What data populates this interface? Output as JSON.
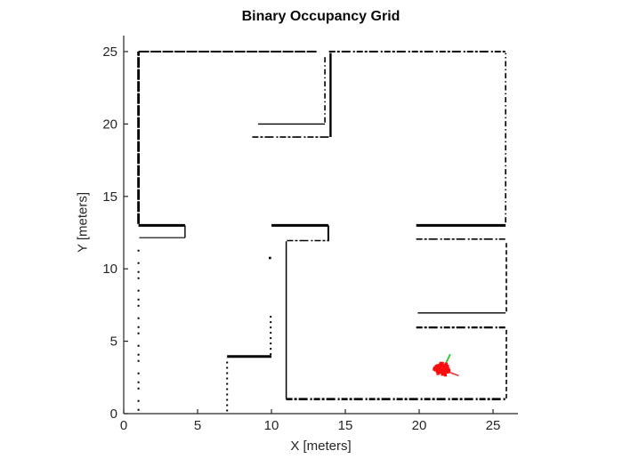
{
  "chart_data": {
    "type": "scatter",
    "title": "Binary Occupancy Grid",
    "xlabel": "X [meters]",
    "ylabel": "Y [meters]",
    "xlim": [
      0,
      26.7
    ],
    "ylim": [
      0,
      26.1
    ],
    "xticks": [
      0,
      5,
      10,
      15,
      20,
      25
    ],
    "yticks": [
      0,
      5,
      10,
      15,
      20,
      25
    ],
    "grid": false,
    "legend": "none",
    "colors": {
      "wall": "#000000",
      "axis": "#262626",
      "particle": "#f80e0e",
      "tail": "#f23535",
      "heading": "#35cb35",
      "background": "#ffffff"
    },
    "walls": [
      {
        "name": "top-wall-left",
        "x1": 1,
        "y1": 25,
        "x2": 13.05,
        "y2": 25,
        "style": "dense",
        "w": 2
      },
      {
        "name": "top-wall-right",
        "x1": 13.9,
        "y1": 25,
        "x2": 25.9,
        "y2": 25,
        "style": "dashmix",
        "w": 2
      },
      {
        "name": "left-wall-upper",
        "x1": 1,
        "y1": 13.1,
        "x2": 1,
        "y2": 25,
        "style": "dense",
        "w": 2.8
      },
      {
        "name": "left-wall-lower",
        "x1": 1,
        "y1": 0.2,
        "x2": 1,
        "y2": 11.6,
        "style": "sparse",
        "w": 2
      },
      {
        "name": "right-wall-upper",
        "x1": 25.85,
        "y1": 13.2,
        "x2": 25.85,
        "y2": 24.9,
        "style": "dashdot",
        "w": 1.6
      },
      {
        "name": "right-wall-mid",
        "x1": 25.9,
        "y1": 7.05,
        "x2": 25.9,
        "y2": 11.95,
        "style": "dashed",
        "w": 1.6
      },
      {
        "name": "right-wall-lower",
        "x1": 25.9,
        "y1": 1.05,
        "x2": 25.9,
        "y2": 5.85,
        "style": "dashed",
        "w": 1.6
      },
      {
        "name": "bottom-wall",
        "x1": 11,
        "y1": 1,
        "x2": 25.9,
        "y2": 1,
        "style": "dashmix",
        "w": 2.6
      },
      {
        "name": "room-upper-vert-dashdot",
        "x1": 13.62,
        "y1": 20.1,
        "x2": 13.62,
        "y2": 24.8,
        "style": "dashdot",
        "w": 1.6
      },
      {
        "name": "room-upper-vert-solid",
        "x1": 14,
        "y1": 19.1,
        "x2": 14,
        "y2": 24.9,
        "style": "solid",
        "w": 2.4
      },
      {
        "name": "room-upper-horiz-solid",
        "x1": 9.1,
        "y1": 20,
        "x2": 13.62,
        "y2": 20,
        "style": "solid",
        "w": 1.4
      },
      {
        "name": "room-upper-horiz-dashed",
        "x1": 8.7,
        "y1": 19.1,
        "x2": 14,
        "y2": 19.1,
        "style": "dashmix",
        "w": 1.6
      },
      {
        "name": "ledge-left-top",
        "x1": 1,
        "y1": 13,
        "x2": 4.15,
        "y2": 13,
        "style": "solid",
        "w": 3
      },
      {
        "name": "ledge-left-side",
        "x1": 4.15,
        "y1": 12.15,
        "x2": 4.15,
        "y2": 13,
        "style": "solid",
        "w": 1.4
      },
      {
        "name": "ledge-left-bottom",
        "x1": 1.05,
        "y1": 12.15,
        "x2": 4.15,
        "y2": 12.15,
        "style": "solid",
        "w": 1.2
      },
      {
        "name": "ledge-mid-top",
        "x1": 10,
        "y1": 13,
        "x2": 13.85,
        "y2": 13,
        "style": "solid",
        "w": 3
      },
      {
        "name": "ledge-mid-side",
        "x1": 13.85,
        "y1": 11.9,
        "x2": 13.85,
        "y2": 13,
        "style": "solid",
        "w": 2
      },
      {
        "name": "ledge-mid-bottom",
        "x1": 11.05,
        "y1": 11.95,
        "x2": 13.8,
        "y2": 11.95,
        "style": "dashmix",
        "w": 1.5
      },
      {
        "name": "center-wall-vert",
        "x1": 11,
        "y1": 1,
        "x2": 11,
        "y2": 11.9,
        "style": "solid",
        "w": 1.5
      },
      {
        "name": "ledge-right-top",
        "x1": 19.8,
        "y1": 13,
        "x2": 25.85,
        "y2": 13,
        "style": "solid",
        "w": 3
      },
      {
        "name": "ledge-right-bottom",
        "x1": 19.8,
        "y1": 12.05,
        "x2": 25.9,
        "y2": 12.05,
        "style": "dashmix",
        "w": 1.6
      },
      {
        "name": "shelf-right-top",
        "x1": 19.9,
        "y1": 6.95,
        "x2": 25.85,
        "y2": 6.95,
        "style": "solid",
        "w": 1.4
      },
      {
        "name": "shelf-right-bottom",
        "x1": 19.8,
        "y1": 5.95,
        "x2": 25.9,
        "y2": 5.95,
        "style": "dashmix",
        "w": 2.2
      },
      {
        "name": "block-lower-top",
        "x1": 7,
        "y1": 3.95,
        "x2": 10,
        "y2": 3.95,
        "style": "solid",
        "w": 3
      },
      {
        "name": "block-lower-left",
        "x1": 7,
        "y1": 0.15,
        "x2": 7,
        "y2": 3.85,
        "style": "dotted",
        "w": 2
      },
      {
        "name": "block-lower-right",
        "x1": 9.95,
        "y1": 4.05,
        "x2": 9.95,
        "y2": 6.85,
        "style": "dotted",
        "w": 2
      }
    ],
    "stray_points": [
      [
        9.9,
        10.75
      ]
    ],
    "robot": {
      "particles_center": [
        21.62,
        3.02
      ],
      "particle_offsets": [
        [
          -0.6,
          0.05
        ],
        [
          -0.55,
          0.15
        ],
        [
          -0.5,
          0.0
        ],
        [
          -0.45,
          0.25
        ],
        [
          -0.4,
          -0.1
        ],
        [
          -0.4,
          0.1
        ],
        [
          -0.35,
          0.3
        ],
        [
          -0.3,
          0.0
        ],
        [
          -0.3,
          -0.2
        ],
        [
          -0.25,
          0.2
        ],
        [
          -0.25,
          -0.05
        ],
        [
          -0.2,
          0.35
        ],
        [
          -0.2,
          0.05
        ],
        [
          -0.15,
          -0.15
        ],
        [
          -0.15,
          0.45
        ],
        [
          -0.1,
          0.25
        ],
        [
          -0.1,
          0.0
        ],
        [
          -0.05,
          -0.3
        ],
        [
          -0.05,
          0.45
        ],
        [
          0.0,
          0.1
        ],
        [
          0.0,
          -0.1
        ],
        [
          0.05,
          0.3
        ],
        [
          0.05,
          -0.05
        ],
        [
          0.1,
          0.0
        ],
        [
          0.1,
          -0.25
        ],
        [
          0.15,
          0.2
        ],
        [
          0.15,
          -0.35
        ],
        [
          0.2,
          0.4
        ],
        [
          0.2,
          -0.05
        ],
        [
          0.25,
          0.1
        ],
        [
          0.3,
          -0.15
        ],
        [
          0.3,
          0.25
        ],
        [
          0.35,
          0.05
        ],
        [
          0.4,
          -0.05
        ],
        [
          0.05,
          -0.2
        ],
        [
          -0.35,
          -0.25
        ]
      ],
      "heading_line": {
        "x1": 21.68,
        "y1": 3.2,
        "x2": 22.1,
        "y2": 4.1
      },
      "tail_line": {
        "x1": 21.8,
        "y1": 2.95,
        "x2": 22.68,
        "y2": 2.62
      }
    }
  }
}
